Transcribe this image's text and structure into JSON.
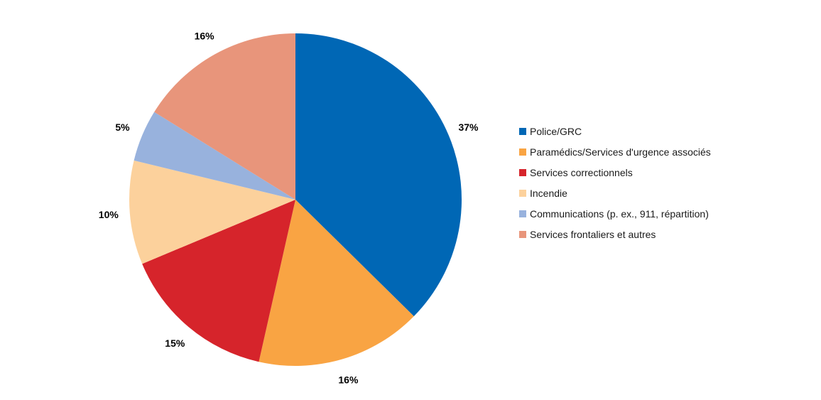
{
  "chart_data": {
    "type": "pie",
    "title": "",
    "legend_position": "right",
    "start_angle_deg": 0,
    "direction": "clockwise",
    "slices": [
      {
        "label": "Police/GRC",
        "value": 37,
        "display": "37%",
        "color": "#0067b5"
      },
      {
        "label": "Paramédics/Services d'urgence associés",
        "value": 16,
        "display": "16%",
        "color": "#f9a443"
      },
      {
        "label": "Services correctionnels",
        "value": 15,
        "display": "15%",
        "color": "#d6242b"
      },
      {
        "label": "Incendie",
        "value": 10,
        "display": "10%",
        "color": "#fcd19c"
      },
      {
        "label": "Communications (p. ex., 911, répartition)",
        "value": 5,
        "display": "5%",
        "color": "#98b2dd"
      },
      {
        "label": "Services frontaliers et autres",
        "value": 16,
        "display": "16%",
        "color": "#e8957b"
      }
    ]
  }
}
